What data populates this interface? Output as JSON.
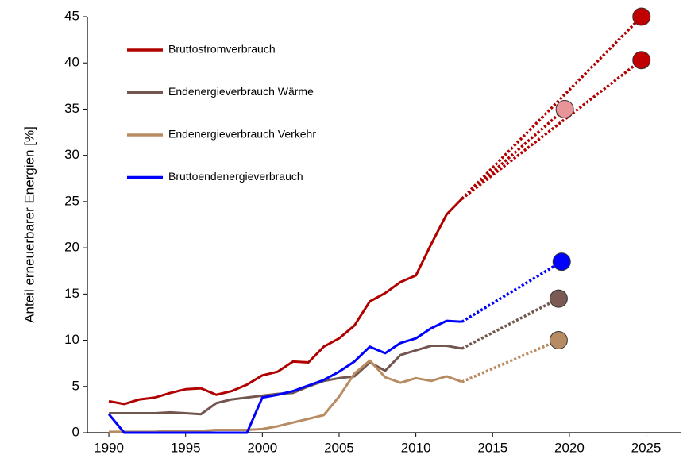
{
  "chart_data": {
    "type": "line",
    "y_label": "Anteil erneuerbarer Energien [%]",
    "x": [
      1990,
      1991,
      1992,
      1993,
      1994,
      1995,
      1996,
      1997,
      1998,
      1999,
      2000,
      2001,
      2002,
      2003,
      2004,
      2005,
      2006,
      2007,
      2008,
      2009,
      2010,
      2011,
      2012,
      2013
    ],
    "series": [
      {
        "name": "Bruttostromverbrauch",
        "color": "#b00000",
        "values": [
          3.4,
          3.1,
          3.6,
          3.8,
          4.3,
          4.7,
          4.8,
          4.1,
          4.5,
          5.2,
          6.2,
          6.6,
          7.7,
          7.6,
          9.3,
          10.2,
          11.6,
          14.2,
          15.1,
          16.3,
          17.0,
          20.4,
          23.6,
          25.3
        ],
        "targets": [
          {
            "x": 2024.7,
            "y": 45,
            "color": "#c00000"
          },
          {
            "x": 2024.7,
            "y": 40.3,
            "color": "#c00000"
          },
          {
            "x": 2019.7,
            "y": 35,
            "color": "#e8959a"
          }
        ]
      },
      {
        "name": "Endenergieverbrauch Wärme",
        "color": "#735650",
        "values": [
          2.1,
          2.1,
          2.1,
          2.1,
          2.2,
          2.1,
          2.0,
          3.2,
          3.6,
          3.8,
          4.0,
          4.2,
          4.3,
          5.0,
          5.6,
          5.9,
          6.1,
          7.6,
          6.7,
          8.4,
          8.9,
          9.4,
          9.4,
          9.1
        ],
        "targets": [
          {
            "x": 2019.3,
            "y": 14.5,
            "color": "#7a5a52"
          }
        ]
      },
      {
        "name": "Endenergieverbrauch Verkehr",
        "color": "#b88c62",
        "values": [
          0.1,
          0.1,
          0.1,
          0.1,
          0.2,
          0.2,
          0.2,
          0.3,
          0.3,
          0.3,
          0.4,
          0.7,
          1.1,
          1.5,
          1.9,
          3.9,
          6.4,
          7.8,
          6.0,
          5.4,
          5.9,
          5.6,
          6.1,
          5.5
        ],
        "targets": [
          {
            "x": 2019.3,
            "y": 10.0,
            "color": "#b88c62"
          }
        ]
      },
      {
        "name": "Bruttoendenergieverbrauch",
        "color": "#0000ff",
        "values": [
          2.0,
          0.0,
          0.0,
          0.0,
          0.0,
          0.0,
          0.0,
          0.0,
          0.0,
          0.0,
          3.8,
          4.1,
          4.5,
          5.1,
          5.7,
          6.6,
          7.7,
          9.3,
          8.6,
          9.7,
          10.2,
          11.3,
          12.1,
          12.0
        ],
        "targets": [
          {
            "x": 2019.5,
            "y": 18.5,
            "color": "#0000ff"
          }
        ]
      }
    ],
    "xlim": [
      1988.6,
      2027.3
    ],
    "ylim": [
      0,
      45
    ],
    "xticks": [
      1990,
      1995,
      2000,
      2005,
      2010,
      2015,
      2020,
      2025
    ],
    "yticks": [
      0,
      5,
      10,
      15,
      20,
      25,
      30,
      35,
      40,
      45
    ],
    "grid": false,
    "legend": "top-left"
  }
}
